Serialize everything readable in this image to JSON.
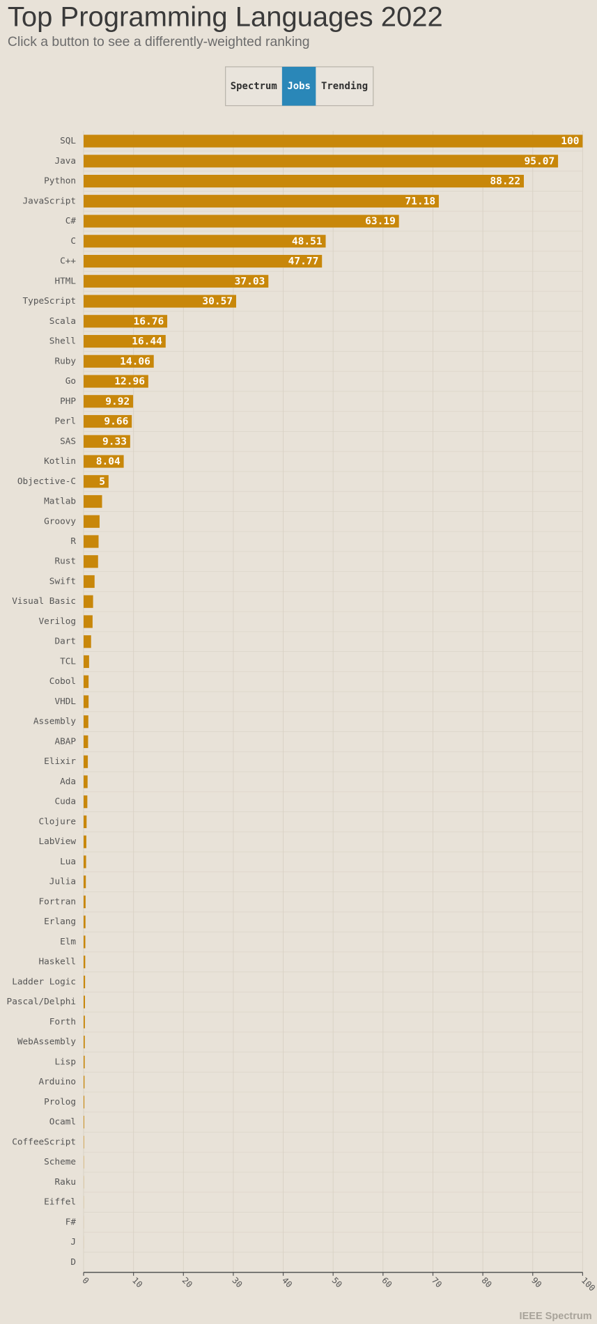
{
  "title": "Top Programming Languages 2022",
  "subtitle": "Click a button to see a differently-weighted ranking",
  "buttons": [
    "Spectrum",
    "Jobs",
    "Trending"
  ],
  "selected_button": 1,
  "footer": "IEEE Spectrum",
  "chart_data": {
    "type": "hbar",
    "color": "#c8870a",
    "grid": true,
    "categories": [
      "SQL",
      "Java",
      "Python",
      "JavaScript",
      "C#",
      "C",
      "C++",
      "HTML",
      "TypeScript",
      "Scala",
      "Shell",
      "Ruby",
      "Go",
      "PHP",
      "Perl",
      "SAS",
      "Kotlin",
      "Objective-C",
      "Matlab",
      "Groovy",
      "R",
      "Rust",
      "Swift",
      "Visual Basic",
      "Verilog",
      "Dart",
      "TCL",
      "Cobol",
      "VHDL",
      "Assembly",
      "ABAP",
      "Elixir",
      "Ada",
      "Cuda",
      "Clojure",
      "LabView",
      "Lua",
      "Julia",
      "Fortran",
      "Erlang",
      "Elm",
      "Haskell",
      "Ladder Logic",
      "Pascal/Delphi",
      "Forth",
      "WebAssembly",
      "Lisp",
      "Arduino",
      "Prolog",
      "Ocaml",
      "CoffeeScript",
      "Scheme",
      "Raku",
      "Eiffel",
      "F#",
      "J",
      "D"
    ],
    "values": [
      100,
      95.07,
      88.22,
      71.18,
      63.19,
      48.51,
      47.77,
      37.03,
      30.57,
      16.76,
      16.44,
      14.06,
      12.96,
      9.92,
      9.66,
      9.33,
      8.04,
      5,
      3.7,
      3.2,
      3.0,
      2.9,
      2.2,
      1.9,
      1.8,
      1.5,
      1.1,
      1.0,
      1.0,
      0.95,
      0.9,
      0.85,
      0.8,
      0.75,
      0.6,
      0.55,
      0.5,
      0.45,
      0.4,
      0.38,
      0.35,
      0.33,
      0.3,
      0.28,
      0.26,
      0.24,
      0.22,
      0.18,
      0.15,
      0.12,
      0.08,
      0.05,
      0.03,
      0.02,
      0.01,
      0.01,
      0
    ],
    "xlim": [
      0,
      100
    ],
    "xticks": [
      0,
      10,
      20,
      30,
      40,
      50,
      60,
      70,
      80,
      90,
      100
    ]
  }
}
